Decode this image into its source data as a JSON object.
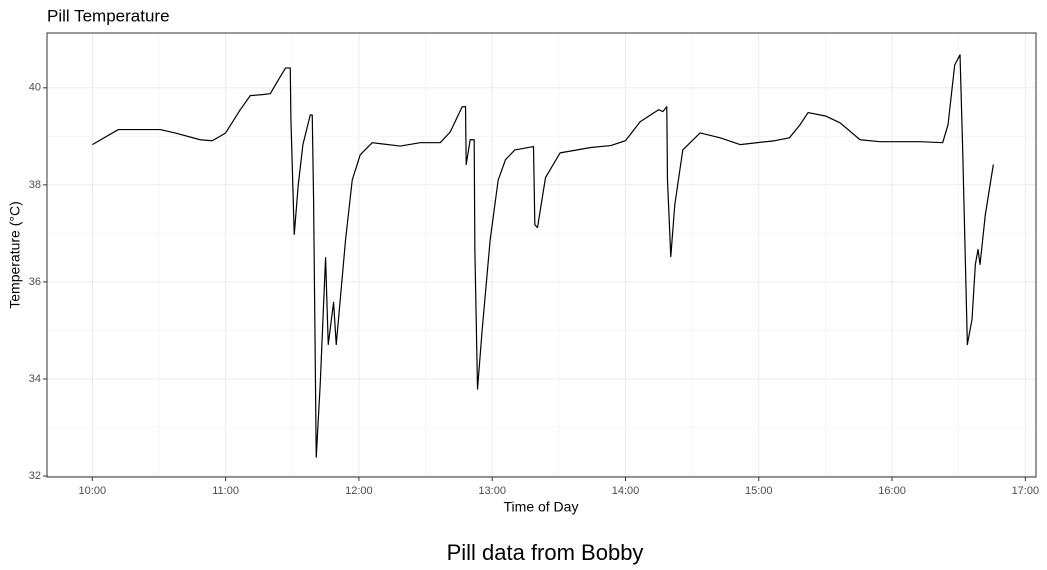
{
  "chart_data": {
    "type": "line",
    "title": "Pill Temperature",
    "x_label": "Time of Day",
    "y_label": "Temperature (°C)",
    "caption": "Pill data from Bobby",
    "xlim": [
      9.66,
      17.08
    ],
    "ylim": [
      31.98,
      41.13
    ],
    "xticks": [
      {
        "value": 10,
        "label": "10:00"
      },
      {
        "value": 11,
        "label": "11:00"
      },
      {
        "value": 12,
        "label": "12:00"
      },
      {
        "value": 13,
        "label": "13:00"
      },
      {
        "value": 14,
        "label": "14:00"
      },
      {
        "value": 15,
        "label": "15:00"
      },
      {
        "value": 16,
        "label": "16:00"
      },
      {
        "value": 17,
        "label": "17:00"
      }
    ],
    "yticks": [
      32,
      34,
      36,
      38,
      40
    ],
    "grid": true,
    "series": [
      {
        "color": "#000000",
        "x": [
          10.0,
          10.195,
          10.51,
          10.62,
          10.81,
          10.9,
          11.0,
          11.11,
          11.185,
          11.275,
          11.335,
          11.395,
          11.45,
          11.485,
          11.49,
          11.515,
          11.545,
          11.58,
          11.635,
          11.65,
          11.66,
          11.68,
          11.71,
          11.75,
          11.77,
          11.81,
          11.83,
          11.9,
          11.95,
          12.01,
          12.1,
          12.31,
          12.46,
          12.61,
          12.685,
          12.775,
          12.8,
          12.805,
          12.835,
          12.865,
          12.87,
          12.89,
          12.925,
          12.985,
          13.045,
          13.1,
          13.17,
          13.31,
          13.32,
          13.34,
          13.4,
          13.51,
          13.74,
          13.89,
          14.0,
          14.11,
          14.25,
          14.28,
          14.31,
          14.315,
          14.34,
          14.37,
          14.43,
          14.56,
          14.71,
          14.86,
          15.12,
          15.23,
          15.31,
          15.37,
          15.5,
          15.61,
          15.76,
          15.91,
          16.21,
          16.38,
          16.42,
          16.47,
          16.51,
          16.53,
          16.565,
          16.6,
          16.625,
          16.645,
          16.66,
          16.7,
          16.76
        ],
        "values": [
          38.83,
          39.14,
          39.14,
          39.07,
          38.93,
          38.91,
          39.07,
          39.55,
          39.84,
          39.86,
          39.88,
          40.16,
          40.41,
          40.41,
          39.34,
          36.98,
          38.0,
          38.83,
          39.44,
          39.44,
          37.7,
          32.39,
          33.9,
          36.5,
          34.71,
          35.58,
          34.71,
          36.87,
          38.1,
          38.62,
          38.87,
          38.8,
          38.87,
          38.87,
          39.09,
          39.61,
          39.61,
          38.42,
          38.93,
          38.93,
          36.67,
          33.79,
          35.02,
          36.87,
          38.1,
          38.52,
          38.72,
          38.79,
          37.18,
          37.12,
          38.15,
          38.66,
          38.77,
          38.81,
          38.91,
          39.3,
          39.55,
          39.51,
          39.61,
          38.11,
          36.52,
          37.59,
          38.72,
          39.07,
          38.97,
          38.83,
          38.91,
          38.97,
          39.24,
          39.49,
          39.42,
          39.28,
          38.93,
          38.89,
          38.89,
          38.87,
          39.24,
          40.47,
          40.68,
          38.72,
          34.71,
          35.23,
          36.36,
          36.67,
          36.36,
          37.39,
          38.42
        ]
      }
    ]
  }
}
